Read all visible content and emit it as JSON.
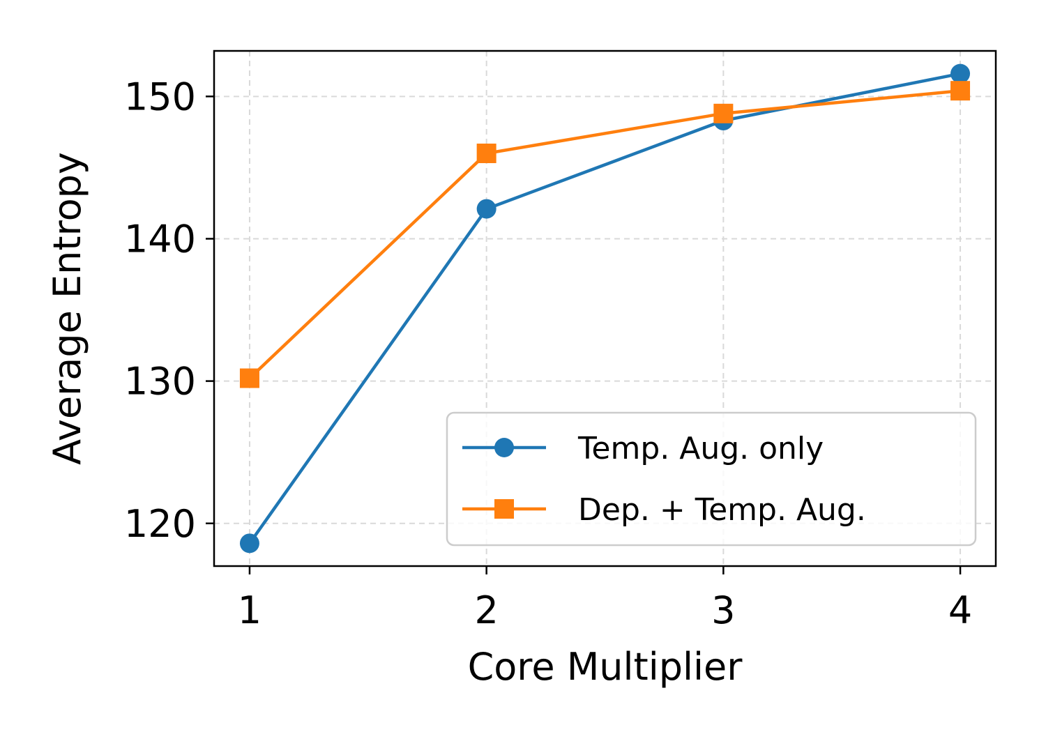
{
  "chart_data": {
    "type": "line",
    "title": "",
    "xlabel": "Core Multiplier",
    "ylabel": "Average Entropy",
    "x": [
      1,
      2,
      3,
      4
    ],
    "xlim": [
      0.85,
      4.15
    ],
    "ylim": [
      117,
      153.2
    ],
    "xticks": [
      1,
      2,
      3,
      4
    ],
    "yticks": [
      120,
      130,
      140,
      150
    ],
    "grid": true,
    "legend_position": "lower-right",
    "series": [
      {
        "name": "Temp. Aug. only",
        "values": [
          118.6,
          142.1,
          148.3,
          151.6
        ],
        "color": "#1f77b4",
        "marker": "circle"
      },
      {
        "name": "Dep. + Temp. Aug.",
        "values": [
          130.2,
          146.0,
          148.8,
          150.4
        ],
        "color": "#ff7f0e",
        "marker": "square"
      }
    ]
  }
}
